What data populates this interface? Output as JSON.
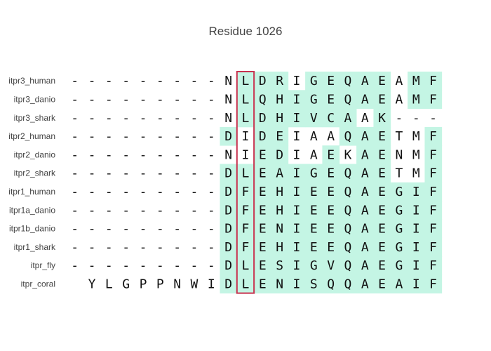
{
  "title": "Residue 1026",
  "highlight_color": "#c4f5e4",
  "frame_color": "#c8324f",
  "highlight_column": 10,
  "rows": [
    {
      "label": "itpr3_human",
      "seq": "---------NLDRIGEQAEAMF",
      "hl": "0000000000111011111011"
    },
    {
      "label": "itpr3_danio",
      "seq": "---------NLQHIGEQAEAMF",
      "hl": "0000000000111111111011"
    },
    {
      "label": "itpr3_shark",
      "seq": "---------NLDHIVCAAK---",
      "hl": "0000000000111111101000"
    },
    {
      "label": "itpr2_human",
      "seq": "---------DIDEIAAQAETMF",
      "hl": "0000000001011000111001"
    },
    {
      "label": "itpr2_danio",
      "seq": "---------NIEDIAEKAENMF",
      "hl": "0000000000011001011001"
    },
    {
      "label": "itpr2_shark",
      "seq": "---------DLEAIGEQAETMF",
      "hl": "0000000001111111111001"
    },
    {
      "label": "itpr1_human",
      "seq": "---------DFEHIEEQAEGIF",
      "hl": "0000000001111111111111"
    },
    {
      "label": "itpr1a_danio",
      "seq": "---------DFEHIEEQAEGIF",
      "hl": "0000000001111111111111"
    },
    {
      "label": "itpr1b_danio",
      "seq": "---------DFENIEEQAEGIF",
      "hl": "0000000001111111111111"
    },
    {
      "label": "itpr1_shark",
      "seq": "---------DFEHIEEQAEGIF",
      "hl": "0000000001111111111111"
    },
    {
      "label": "itpr_fly",
      "seq": "---------DLESIGVQAEGIF",
      "hl": "0000000001111111111111"
    },
    {
      "label": "itpr_coral",
      "seq": "YLGPPNWIDLENISQQAEAIF",
      "hl": "000000001111111111111"
    }
  ]
}
